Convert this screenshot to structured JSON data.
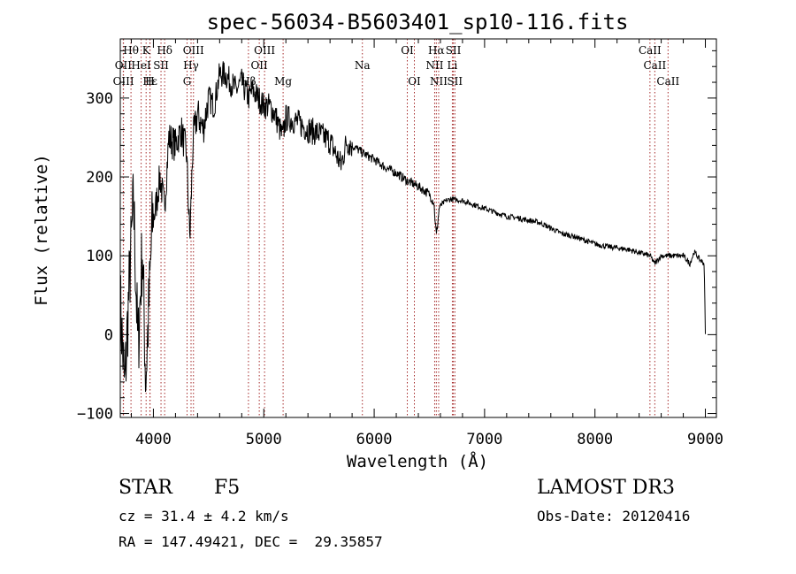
{
  "chart_data": {
    "type": "line",
    "title": "spec-56034-B5603401_sp10-116.fits",
    "xlabel": "Wavelength (Å)",
    "ylabel": "Flux (relative)",
    "xlim": [
      3700,
      9100
    ],
    "ylim": [
      -105,
      375
    ],
    "xticks": [
      4000,
      5000,
      6000,
      7000,
      8000,
      9000
    ],
    "yticks": [
      -100,
      0,
      100,
      200,
      300
    ],
    "series": [
      {
        "name": "flux",
        "anchors": [
          [
            3700,
            40
          ],
          [
            3740,
            -70
          ],
          [
            3780,
            60
          ],
          [
            3820,
            170
          ],
          [
            3860,
            -20
          ],
          [
            3900,
            110
          ],
          [
            3930,
            -60
          ],
          [
            3960,
            40
          ],
          [
            3990,
            140
          ],
          [
            4020,
            160
          ],
          [
            4060,
            200
          ],
          [
            4100,
            160
          ],
          [
            4140,
            250
          ],
          [
            4200,
            240
          ],
          [
            4250,
            260
          ],
          [
            4300,
            230
          ],
          [
            4330,
            120
          ],
          [
            4360,
            250
          ],
          [
            4400,
            280
          ],
          [
            4450,
            260
          ],
          [
            4500,
            300
          ],
          [
            4550,
            290
          ],
          [
            4600,
            330
          ],
          [
            4650,
            330
          ],
          [
            4700,
            320
          ],
          [
            4750,
            310
          ],
          [
            4800,
            320
          ],
          [
            4861,
            300
          ],
          [
            4900,
            310
          ],
          [
            4950,
            300
          ],
          [
            5000,
            290
          ],
          [
            5050,
            290
          ],
          [
            5100,
            280
          ],
          [
            5170,
            250
          ],
          [
            5200,
            275
          ],
          [
            5300,
            270
          ],
          [
            5400,
            260
          ],
          [
            5500,
            255
          ],
          [
            5600,
            245
          ],
          [
            5700,
            215
          ],
          [
            5750,
            245
          ],
          [
            5800,
            240
          ],
          [
            5900,
            230
          ],
          [
            6000,
            222
          ],
          [
            6100,
            212
          ],
          [
            6200,
            205
          ],
          [
            6300,
            195
          ],
          [
            6400,
            188
          ],
          [
            6500,
            178
          ],
          [
            6540,
            168
          ],
          [
            6563,
            125
          ],
          [
            6590,
            162
          ],
          [
            6650,
            170
          ],
          [
            6700,
            172
          ],
          [
            6800,
            170
          ],
          [
            6900,
            165
          ],
          [
            7000,
            160
          ],
          [
            7100,
            155
          ],
          [
            7200,
            150
          ],
          [
            7300,
            148
          ],
          [
            7400,
            145
          ],
          [
            7500,
            142
          ],
          [
            7600,
            135
          ],
          [
            7700,
            128
          ],
          [
            7800,
            125
          ],
          [
            7900,
            120
          ],
          [
            8000,
            115
          ],
          [
            8100,
            112
          ],
          [
            8200,
            110
          ],
          [
            8300,
            108
          ],
          [
            8400,
            104
          ],
          [
            8500,
            100
          ],
          [
            8540,
            90
          ],
          [
            8600,
            100
          ],
          [
            8700,
            100
          ],
          [
            8800,
            100
          ],
          [
            8860,
            90
          ],
          [
            8900,
            105
          ],
          [
            8950,
            95
          ],
          [
            8990,
            90
          ],
          [
            9000,
            0
          ]
        ]
      }
    ],
    "lines": [
      {
        "label": "Hθ",
        "x": 3797,
        "row": 0
      },
      {
        "label": "K",
        "x": 3934,
        "row": 0
      },
      {
        "label": "Hδ",
        "x": 4102,
        "row": 0
      },
      {
        "label": "OIII",
        "x": 4363,
        "row": 0
      },
      {
        "label": "OIII",
        "x": 5007,
        "row": 0
      },
      {
        "label": "OI",
        "x": 6300,
        "row": 0
      },
      {
        "label": "Hα",
        "x": 6563,
        "row": 0
      },
      {
        "label": "SII",
        "x": 6717,
        "row": 0
      },
      {
        "label": "CaII",
        "x": 8498,
        "row": 0
      },
      {
        "label": "OII",
        "x": 3727,
        "row": 1
      },
      {
        "label": "HeI",
        "x": 3889,
        "row": 1
      },
      {
        "label": "SII",
        "x": 4069,
        "row": 1
      },
      {
        "label": "Hγ",
        "x": 4341,
        "row": 1
      },
      {
        "label": "OII",
        "x": 4959,
        "row": 1
      },
      {
        "label": "Na",
        "x": 5893,
        "row": 1
      },
      {
        "label": "NII",
        "x": 6548,
        "row": 1
      },
      {
        "label": "Li",
        "x": 6708,
        "row": 1
      },
      {
        "label": "CaII",
        "x": 8542,
        "row": 1
      },
      {
        "label": "OIII",
        "x": 3729,
        "row": 2
      },
      {
        "label": "Hε",
        "x": 3970,
        "row": 2
      },
      {
        "label": "H",
        "x": 3968,
        "row": 2
      },
      {
        "label": "G",
        "x": 4305,
        "row": 2
      },
      {
        "label": "Hβ",
        "x": 4861,
        "row": 2
      },
      {
        "label": "Mg",
        "x": 5175,
        "row": 2
      },
      {
        "label": "OI",
        "x": 6364,
        "row": 2
      },
      {
        "label": "NII",
        "x": 6584,
        "row": 2
      },
      {
        "label": "SII",
        "x": 6731,
        "row": 2
      },
      {
        "label": "CaII",
        "x": 8662,
        "row": 2
      }
    ]
  },
  "info": {
    "object_class": "STAR",
    "subclass": "F5",
    "survey": "LAMOST DR3",
    "cz": "cz = 31.4 ± 4.2 km/s",
    "obs_date": "Obs-Date: 20120416",
    "coords": "RA = 147.49421, DEC =  29.35857"
  },
  "colors": {
    "axis": "#000000",
    "spectrum": "#000000",
    "line_marker": "#a52a2a"
  }
}
